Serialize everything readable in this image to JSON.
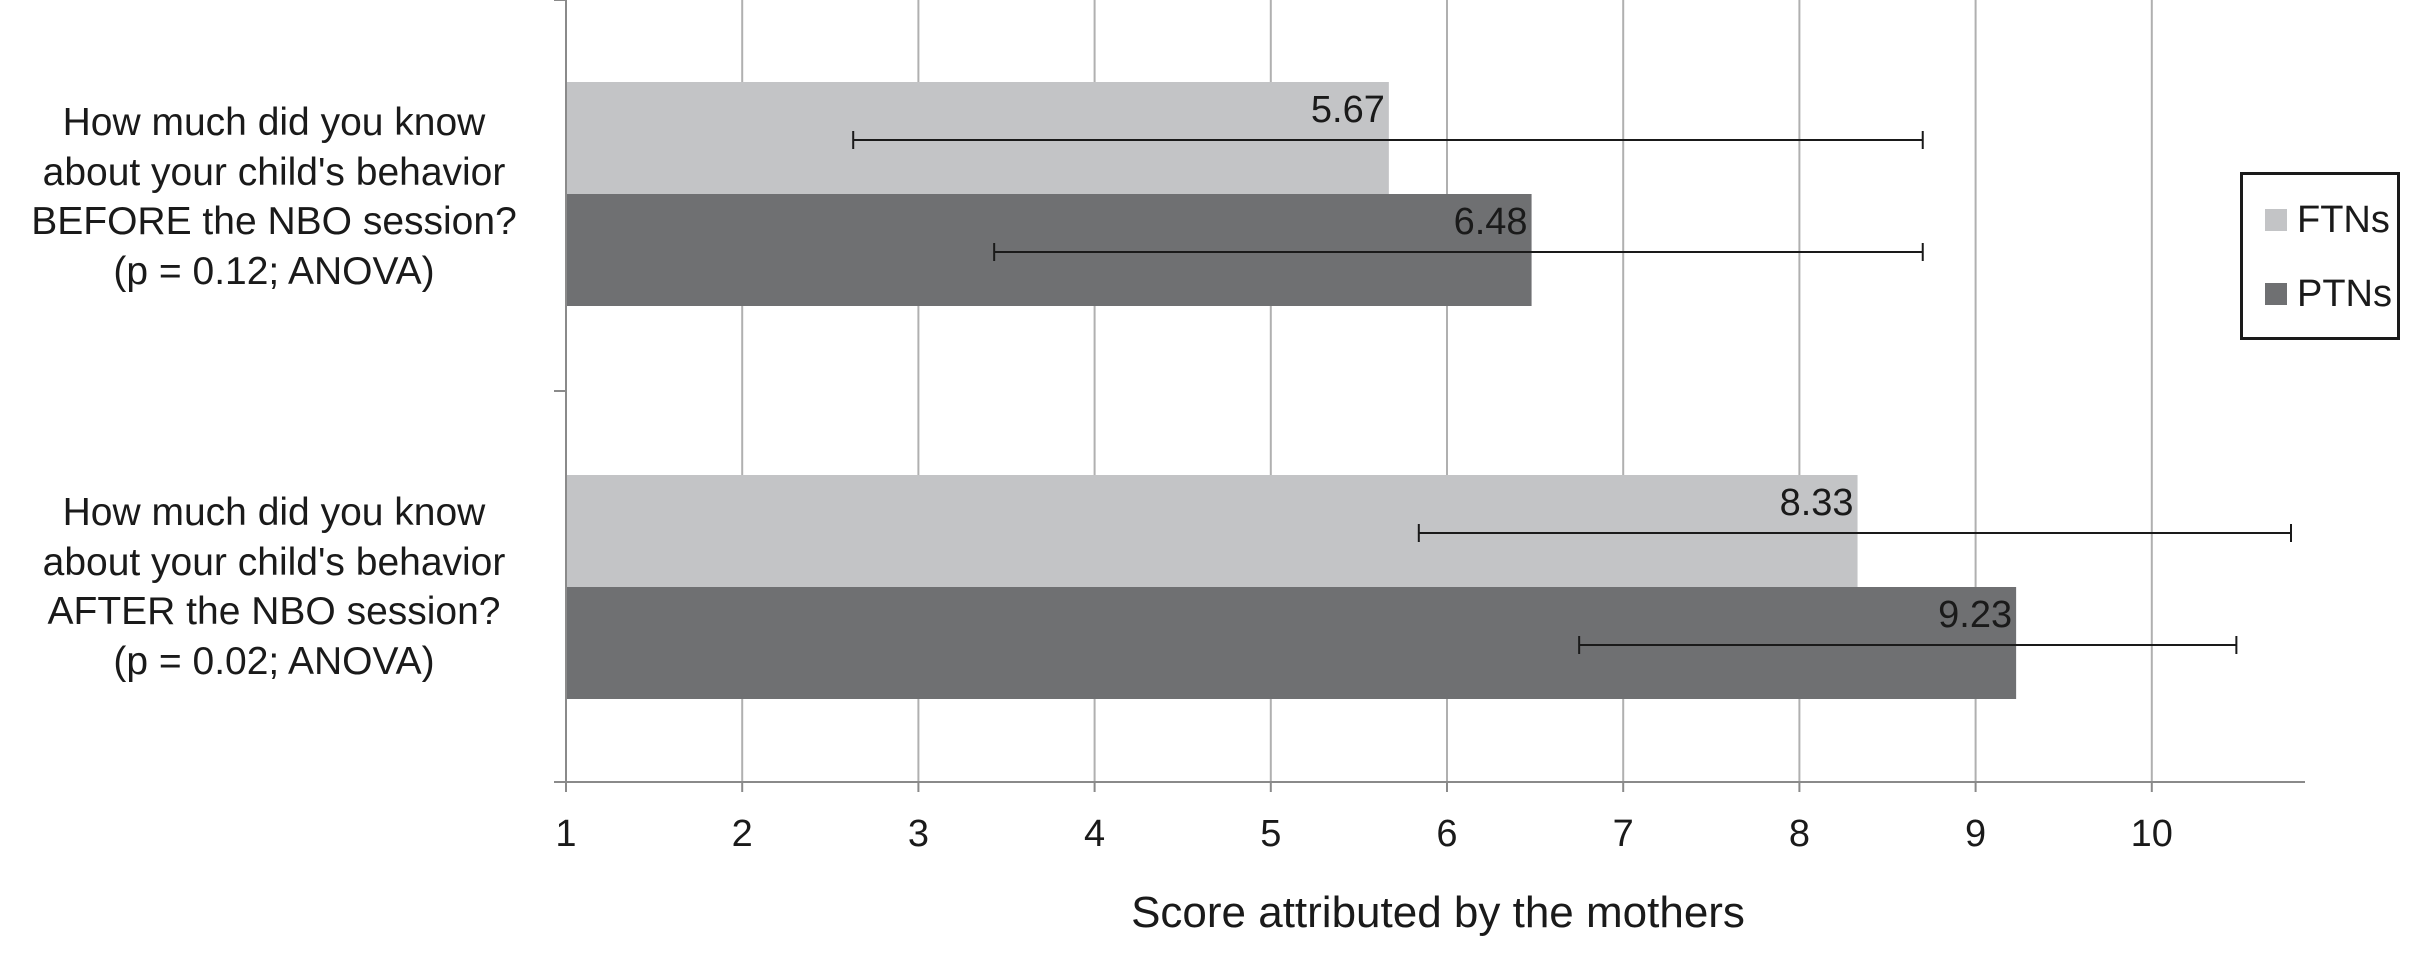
{
  "chart_data": {
    "type": "bar",
    "orientation": "horizontal",
    "categories": [
      {
        "lines": [
          "How much did you know",
          "about your child's behavior",
          "BEFORE the NBO session?",
          "(p = 0.12; ANOVA)"
        ]
      },
      {
        "lines": [
          "How much did you know",
          "about your child's behavior",
          "AFTER the NBO session?",
          "(p = 0.02; ANOVA)"
        ]
      }
    ],
    "series": [
      {
        "name": "FTNs",
        "color": "#c3c4c6",
        "values": [
          5.67,
          8.33
        ],
        "value_labels": [
          "5.67",
          "8.33"
        ],
        "error_low": [
          2.63,
          5.84
        ],
        "error_high": [
          8.7,
          10.79
        ]
      },
      {
        "name": "PTNs",
        "color": "#6f7072",
        "values": [
          6.48,
          9.23
        ],
        "value_labels": [
          "6.48",
          "9.23"
        ],
        "error_low": [
          3.43,
          6.75
        ],
        "error_high": [
          8.7,
          10.48
        ]
      }
    ],
    "xlabel": "Score attributed by the mothers",
    "xlim": [
      1,
      10.9
    ],
    "xticks": [
      1,
      2,
      3,
      4,
      5,
      6,
      7,
      8,
      9,
      10
    ],
    "xtick_labels": [
      "1",
      "2",
      "3",
      "4",
      "5",
      "6",
      "7",
      "8",
      "9",
      "10"
    ],
    "grid": true,
    "legend_position": "right"
  }
}
